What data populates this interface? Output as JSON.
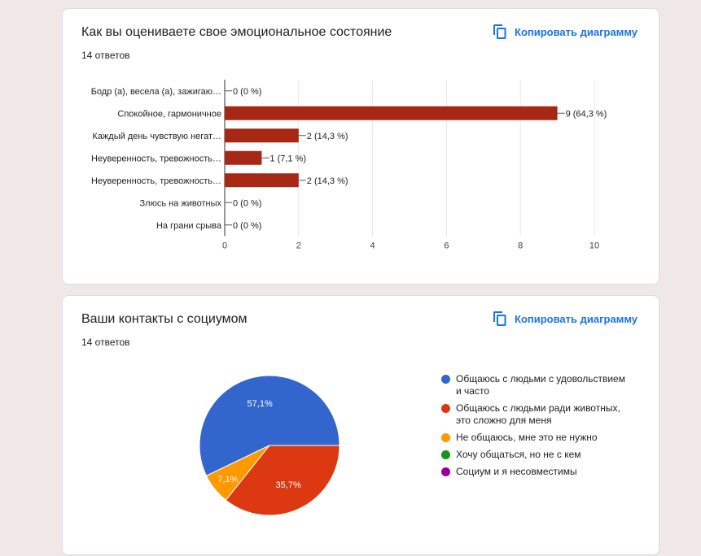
{
  "charts": [
    {
      "title": "Как вы оцениваете свое эмоциональное состояние",
      "responses": "14 ответов",
      "copy_label": "Копировать диаграмму"
    },
    {
      "title": "Ваши контакты с социумом",
      "responses": "14 ответов",
      "copy_label": "Копировать диаграмму"
    }
  ],
  "chart_data": [
    {
      "type": "bar",
      "orientation": "horizontal",
      "categories": [
        "Бодр (а), весела (а), зажигаю…",
        "Спокойное, гармоничное",
        "Каждый день чувствую негат…",
        "Неуверенность, тревожность…",
        "Неуверенность, тревожность…",
        "Злюсь на животных",
        "На грани срыва"
      ],
      "values": [
        0,
        9,
        2,
        1,
        2,
        0,
        0
      ],
      "data_labels": [
        "0 (0 %)",
        "9 (64,3 %)",
        "2 (14,3 %)",
        "1 (7,1 %)",
        "2 (14,3 %)",
        "0 (0 %)",
        "0 (0 %)"
      ],
      "xlim": [
        0,
        10
      ],
      "xticks": [
        0,
        2,
        4,
        6,
        8,
        10
      ],
      "grid": true,
      "color": "#a52714"
    },
    {
      "type": "pie",
      "labels": [
        "Общаюсь с людьми с удовольствием и часто",
        "Общаюсь с людьми ради животных, это сложно для меня",
        "Не общаюсь, мне это не нужно",
        "Хочу общаться, но не с кем",
        "Социум и я несовместимы"
      ],
      "legend_lines": [
        [
          "Общаюсь с людьми с удовольствием",
          "и часто"
        ],
        [
          "Общаюсь с людьми ради животных,",
          "это сложно для меня"
        ],
        [
          "Не общаюсь, мне это не нужно"
        ],
        [
          "Хочу общаться, но не с кем"
        ],
        [
          "Социум и я несовместимы"
        ]
      ],
      "values": [
        8,
        5,
        1,
        0,
        0
      ],
      "percent_labels": [
        "57,1%",
        "35,7%",
        "7,1%",
        "",
        ""
      ],
      "colors": [
        "#3366cc",
        "#dc3912",
        "#ff9900",
        "#109618",
        "#990099"
      ],
      "legend_position": "right"
    }
  ]
}
